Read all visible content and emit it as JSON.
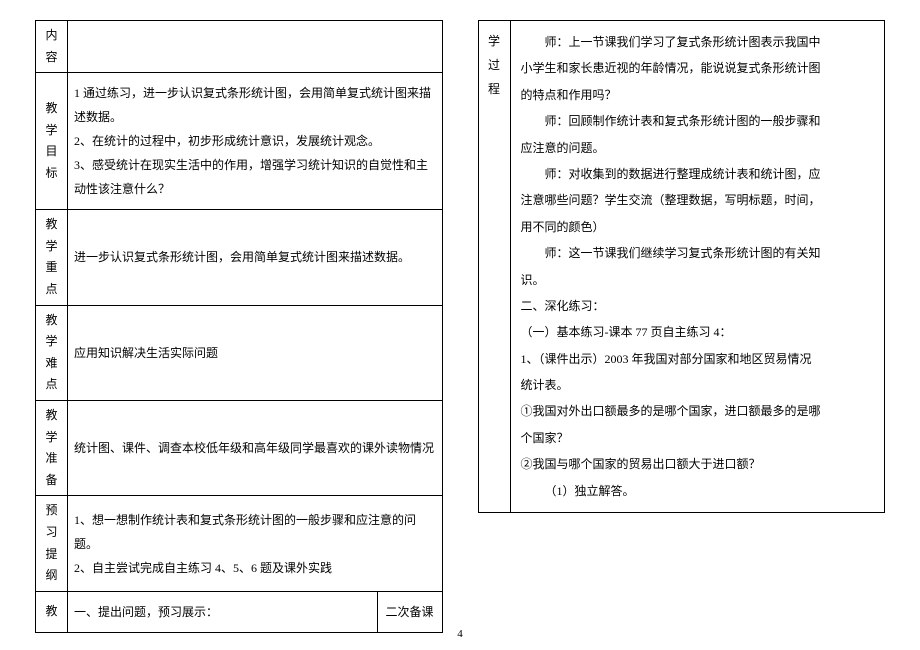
{
  "leftTable": {
    "rows": [
      {
        "label": "内容",
        "labelChars": [
          "内",
          "容"
        ],
        "content": ""
      },
      {
        "label": "教学目标",
        "labelChars": [
          "教",
          "学",
          "目",
          "标"
        ],
        "content": "1 通过练习，进一步认识复式条形统计图，会用简单复式统计图来描述数据。\n2、在统计的过程中，初步形成统计意识，发展统计观念。\n3、感受统计在现实生活中的作用，增强学习统计知识的自觉性和主动性该注意什么？"
      },
      {
        "label": "教学重点",
        "labelChars": [
          "教",
          "学",
          "重",
          "点"
        ],
        "content": "进一步认识复式条形统计图，会用简单复式统计图来描述数据。"
      },
      {
        "label": "教学难点",
        "labelChars": [
          "教",
          "学",
          "难",
          "点"
        ],
        "content": "应用知识解决生活实际问题"
      },
      {
        "label": "教学准备",
        "labelChars": [
          "教",
          "学",
          "准",
          "备"
        ],
        "content": "统计图、课件、调查本校低年级和高年级同学最喜欢的课外读物情况"
      },
      {
        "label": "预习提纲",
        "labelChars": [
          "预",
          "习",
          "提",
          "纲"
        ],
        "content": "1、想一想制作统计表和复式条形统计图的一般步骤和应注意的问题。\n2、自主尝试完成自主练习 4、5、6 题及课外实践"
      },
      {
        "label": "教",
        "labelChars": [
          "教"
        ],
        "content": "一、提出问题，预习展示：",
        "secondary": "二次备课"
      }
    ]
  },
  "rightTable": {
    "label": "学过程",
    "labelChars": [
      "学",
      "过",
      "程"
    ],
    "lines": [
      {
        "text": "师：上一节课我们学习了复式条形统计图表示我国中",
        "indent": true
      },
      {
        "text": "小学生和家长患近视的年龄情况，能说说复式条形统计图",
        "indent": false
      },
      {
        "text": "的特点和作用吗？",
        "indent": false
      },
      {
        "text": "师：回顾制作统计表和复式条形统计图的一般步骤和",
        "indent": true
      },
      {
        "text": "应注意的问题。",
        "indent": false
      },
      {
        "text": "师：对收集到的数据进行整理成统计表和统计图，应",
        "indent": true
      },
      {
        "text": "注意哪些问题？学生交流（整理数据，写明标题，时间，",
        "indent": false
      },
      {
        "text": "用不同的颜色）",
        "indent": false
      },
      {
        "text": "师：这一节课我们继续学习复式条形统计图的有关知",
        "indent": true
      },
      {
        "text": "识。",
        "indent": false
      },
      {
        "text": "二、深化练习：",
        "indent": false
      },
      {
        "text": "（一）基本练习-课本 77 页自主练习 4：",
        "indent": false
      },
      {
        "text": "1、（课件出示）2003 年我国对部分国家和地区贸易情况",
        "indent": false
      },
      {
        "text": "统计表。",
        "indent": false
      },
      {
        "text": "①我国对外出口额最多的是哪个国家，进口额最多的是哪",
        "indent": false
      },
      {
        "text": "个国家？",
        "indent": false
      },
      {
        "text": "②我国与哪个国家的贸易出口额大于进口额？",
        "indent": false
      },
      {
        "text": "（1）独立解答。",
        "indent": true
      }
    ]
  },
  "pageNumber": "4"
}
